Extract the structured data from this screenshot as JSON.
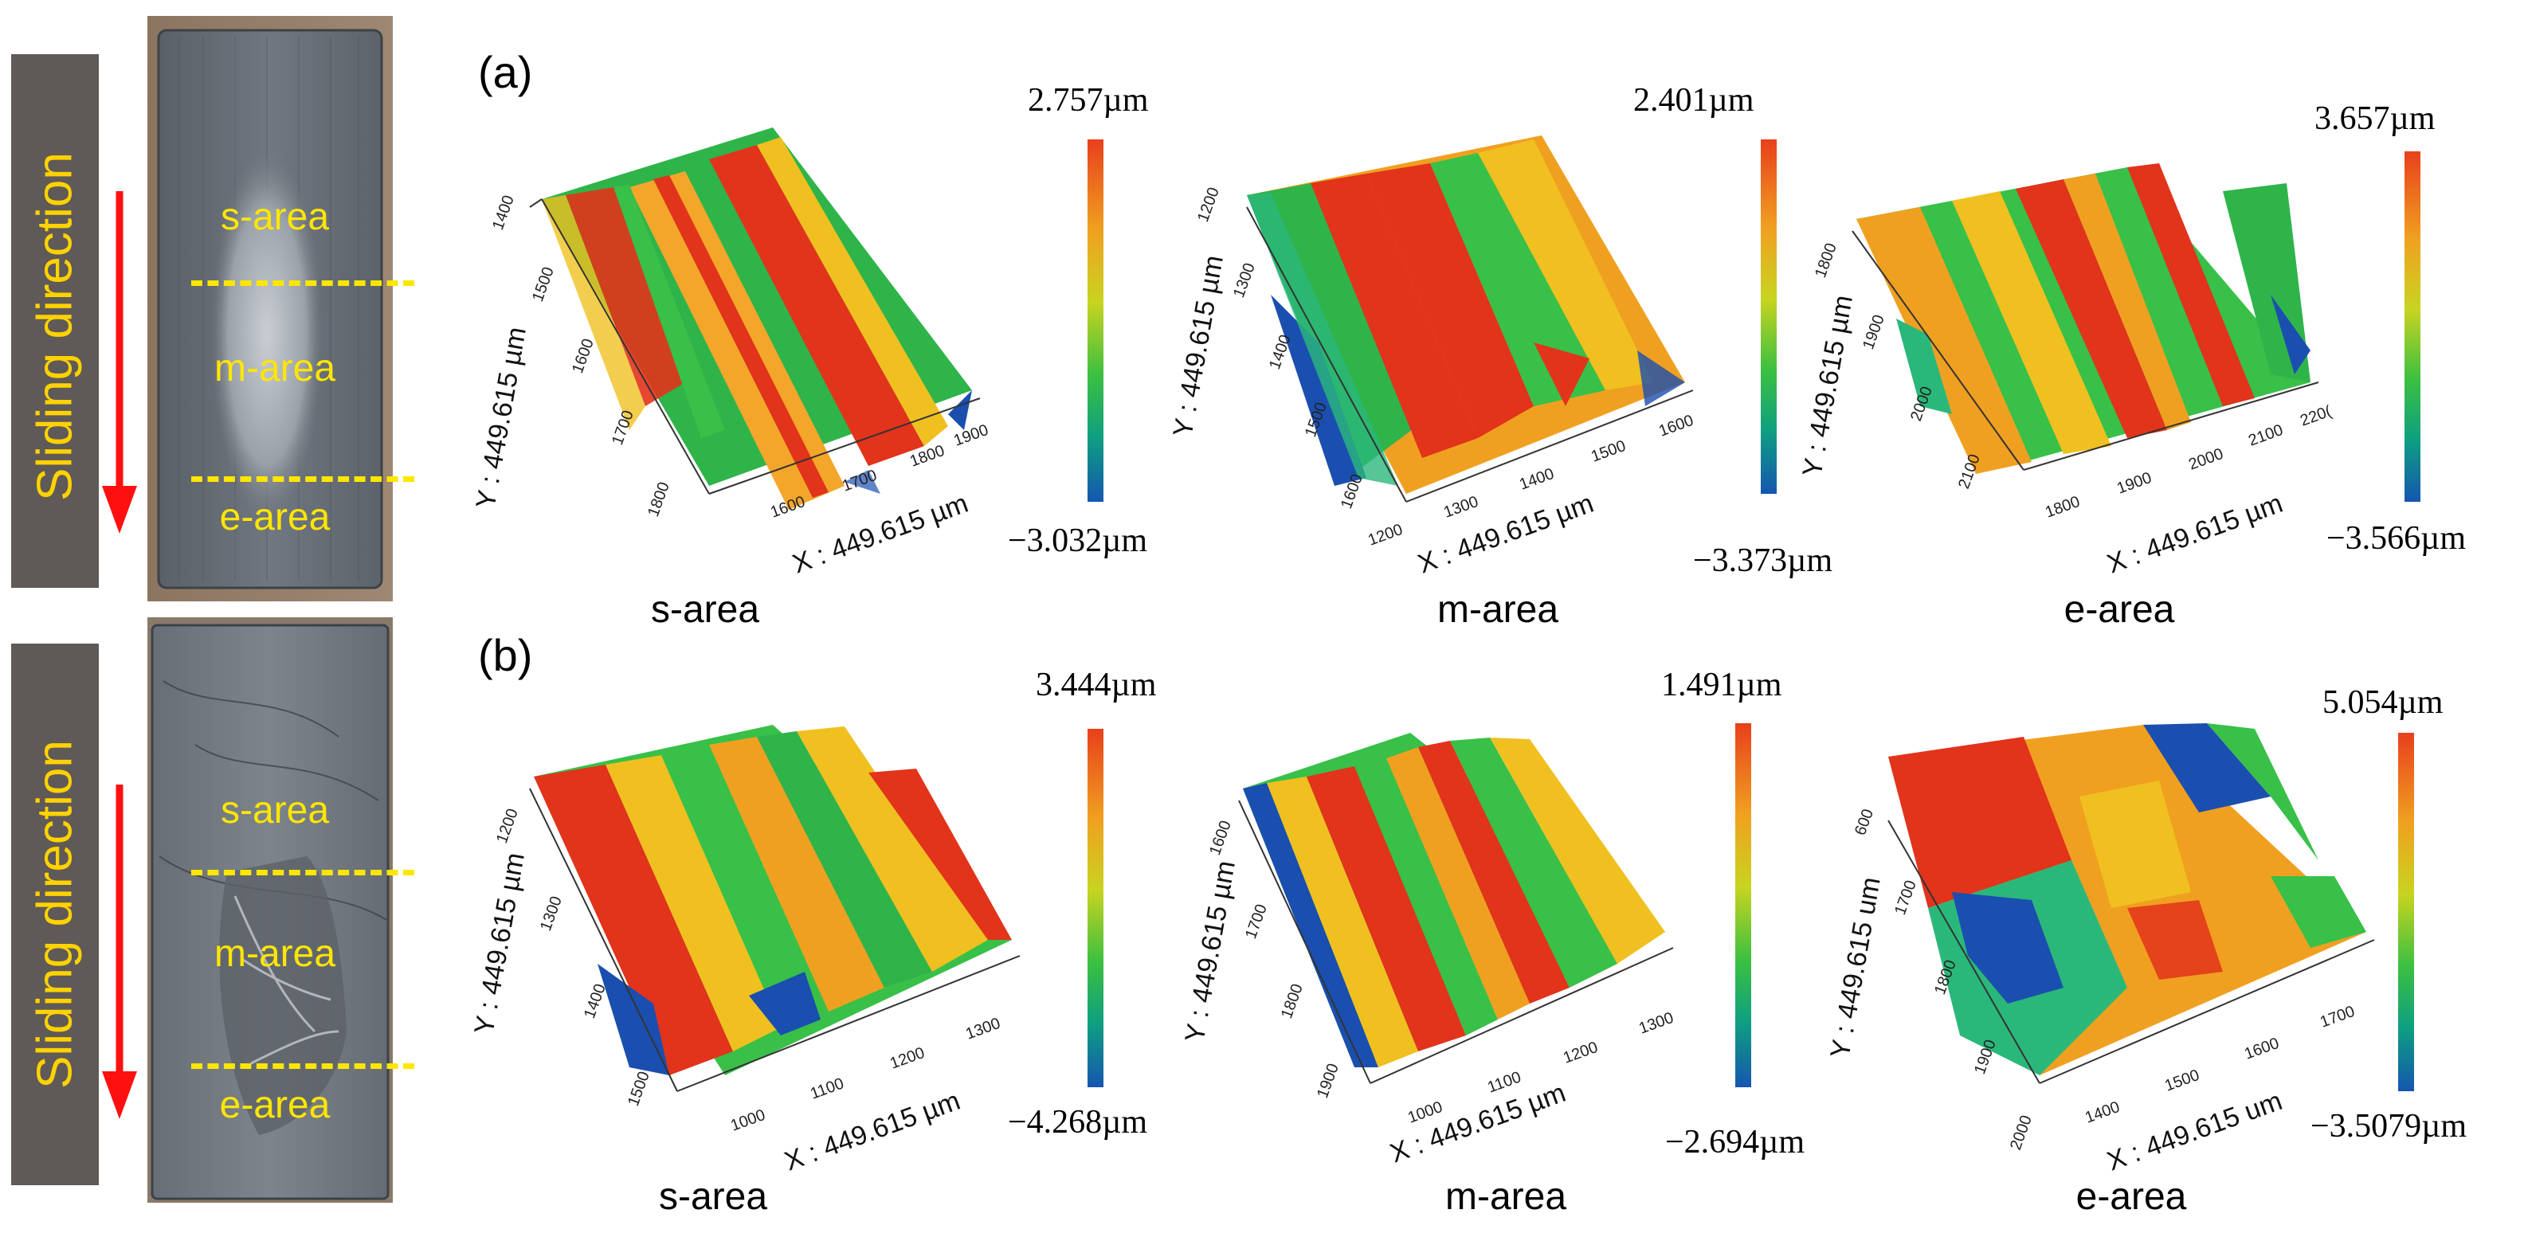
{
  "left_panel": {
    "top": {
      "direction_label": "Sliding direction",
      "areas": [
        "s-area",
        "m-area",
        "e-area"
      ]
    },
    "bottom": {
      "direction_label": "Sliding direction",
      "areas": [
        "s-area",
        "m-area",
        "e-area"
      ]
    }
  },
  "row_a": {
    "label": "(a)",
    "plots": [
      {
        "caption": "s-area",
        "max": "2.757µm",
        "min": "−3.032µm",
        "x_label": "X : 449.615 µm",
        "y_label": "Y : 449.615 µm",
        "x_ticks": [
          "1600",
          "1700",
          "1800",
          "1900"
        ],
        "y_ticks": [
          "1400",
          "1500",
          "1600",
          "1700",
          "1800"
        ]
      },
      {
        "caption": "m-area",
        "max": "2.401µm",
        "min": "−3.373µm",
        "x_label": "X : 449.615 µm",
        "y_label": "Y : 449.615 µm",
        "x_ticks": [
          "1200",
          "1300",
          "1400",
          "1500",
          "1600"
        ],
        "y_ticks": [
          "1200",
          "1300",
          "1400",
          "1500",
          "1600"
        ]
      },
      {
        "caption": "e-area",
        "max": "3.657µm",
        "min": "−3.566µm",
        "x_label": "X : 449.615 µm",
        "y_label": "Y : 449.615 µm",
        "x_ticks": [
          "1800",
          "1900",
          "2000",
          "2100",
          "220("
        ],
        "y_ticks": [
          "1800",
          "1900",
          "2000",
          "2100"
        ]
      }
    ]
  },
  "row_b": {
    "label": "(b)",
    "plots": [
      {
        "caption": "s-area",
        "max": "3.444µm",
        "min": "−4.268µm",
        "x_label": "X : 449.615 µm",
        "y_label": "Y : 449.615 µm",
        "x_ticks": [
          "1000",
          "1100",
          "1200",
          "1300"
        ],
        "y_ticks": [
          "1200",
          "1300",
          "1400",
          "1500"
        ]
      },
      {
        "caption": "m-area",
        "max": "1.491µm",
        "min": "−2.694µm",
        "x_label": "X : 449.615 µm",
        "y_label": "Y : 449.615 µm",
        "x_ticks": [
          "1000",
          "1100",
          "1200",
          "1300"
        ],
        "y_ticks": [
          "1600",
          "1700",
          "1800",
          "1900"
        ]
      },
      {
        "caption": "e-area",
        "max": "5.054µm",
        "min": "−3.5079µm",
        "x_label": "X : 449.615 um",
        "y_label": "Y : 449.615 um",
        "x_ticks": [
          "1400",
          "1500",
          "1600",
          "1700"
        ],
        "y_ticks": [
          "600",
          "1700",
          "1800",
          "1900",
          "2000"
        ]
      }
    ]
  },
  "colors": {
    "direction_bar": "#5f5a57",
    "direction_text": "#ffd200",
    "arrow": "#ff1010",
    "area_text": "#ffe600",
    "dashed_line": "#ffe600"
  }
}
